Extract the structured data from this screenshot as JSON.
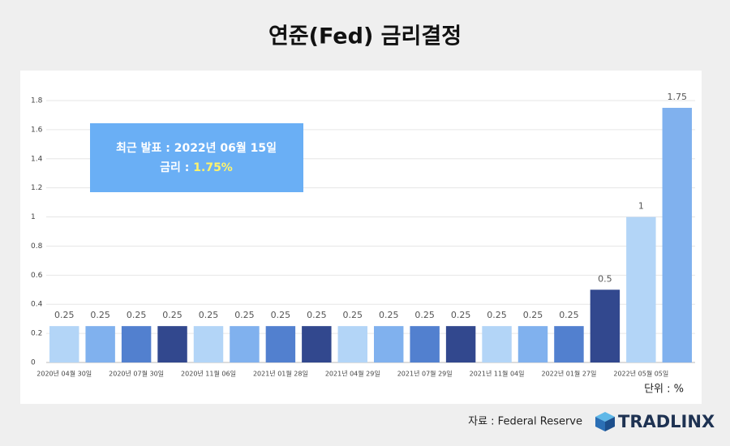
{
  "chart_data": {
    "type": "bar",
    "title": "연준(Fed) 금리결정",
    "categories": [
      "2020년 04월 30일",
      null,
      "2020년 07월 30일",
      null,
      "2020년 11월 06일",
      null,
      "2021년 01월 28일",
      null,
      "2021년 04월 29일",
      null,
      "2021년 07월 29일",
      null,
      "2021년 11월 04일",
      null,
      "2022년 01월 27일",
      null,
      "2022년 05월 05일",
      null
    ],
    "values": [
      0.25,
      0.25,
      0.25,
      0.25,
      0.25,
      0.25,
      0.25,
      0.25,
      0.25,
      0.25,
      0.25,
      0.25,
      0.25,
      0.25,
      0.25,
      0.5,
      1,
      1.75
    ],
    "colors": [
      "#b3d5f7",
      "#80b1ee",
      "#5280cf",
      "#32488e"
    ],
    "ylim": [
      0,
      1.8
    ],
    "yticks": [
      0,
      0.2,
      0.4,
      0.6,
      0.8,
      1,
      1.2,
      1.4,
      1.6,
      1.8
    ],
    "grid": true,
    "annotation": {
      "line1": "최근 발표 : 2022년 06월 15일",
      "rate_label": "금리 : ",
      "rate_value": "1.75%"
    },
    "unit_label": "단위 : %",
    "source": "자료 : Federal Reserve",
    "logo": "TRADLINX"
  }
}
